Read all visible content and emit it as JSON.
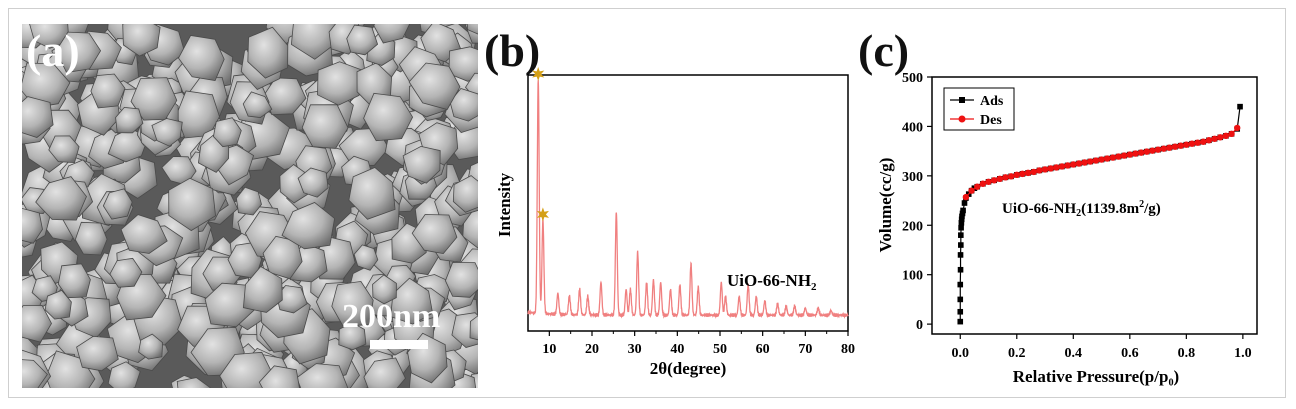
{
  "panels": {
    "a": {
      "letter": "(a)",
      "scale_bar_label": "200nm"
    },
    "b": {
      "letter": "(b)",
      "annotation": "UiO-66-NH",
      "annotation_sub": "2"
    },
    "c": {
      "letter": "(c)",
      "annotation": "UiO-66-NH",
      "annotation_sub": "2",
      "annotation_rest": "(1139.8m",
      "annotation_sup": "2",
      "annotation_end": "/g)"
    }
  },
  "colors": {
    "xrd_line": "#f08080",
    "star": "#d4a017",
    "ads": "#000000",
    "des": "#ee1111",
    "sem_bg": "#5a5a5a"
  },
  "chart_data": [
    {
      "type": "line",
      "panel": "b",
      "xlabel": "2θ(degree)",
      "ylabel": "Intensity",
      "xlim": [
        5,
        80
      ],
      "xticks": [
        10,
        20,
        30,
        40,
        50,
        60,
        70,
        80
      ],
      "yticks_shown": false,
      "peaks": [
        {
          "x": 7.4,
          "y": 100
        },
        {
          "x": 8.5,
          "y": 40
        },
        {
          "x": 12.0,
          "y": 9
        },
        {
          "x": 14.7,
          "y": 8
        },
        {
          "x": 17.1,
          "y": 11
        },
        {
          "x": 19.0,
          "y": 8
        },
        {
          "x": 22.1,
          "y": 14
        },
        {
          "x": 25.7,
          "y": 44
        },
        {
          "x": 28.0,
          "y": 11
        },
        {
          "x": 29.0,
          "y": 11
        },
        {
          "x": 30.7,
          "y": 27
        },
        {
          "x": 32.8,
          "y": 14
        },
        {
          "x": 34.4,
          "y": 15
        },
        {
          "x": 36.1,
          "y": 14
        },
        {
          "x": 38.4,
          "y": 11
        },
        {
          "x": 40.6,
          "y": 13
        },
        {
          "x": 43.2,
          "y": 22
        },
        {
          "x": 44.9,
          "y": 12
        },
        {
          "x": 50.3,
          "y": 14
        },
        {
          "x": 51.3,
          "y": 8
        },
        {
          "x": 54.5,
          "y": 8
        },
        {
          "x": 56.6,
          "y": 13
        },
        {
          "x": 58.5,
          "y": 8
        },
        {
          "x": 60.5,
          "y": 6
        },
        {
          "x": 63.5,
          "y": 5
        },
        {
          "x": 65.5,
          "y": 4
        },
        {
          "x": 67.5,
          "y": 4
        },
        {
          "x": 70.0,
          "y": 3
        },
        {
          "x": 73.0,
          "y": 3
        },
        {
          "x": 76.0,
          "y": 2
        }
      ],
      "starred_peaks_x": [
        7.4,
        8.5
      ]
    },
    {
      "type": "line",
      "panel": "c",
      "xlabel": "Relative Pressure(p/p₀)",
      "ylabel": "Volume(cc/g)",
      "xlim": [
        -0.1,
        1.05
      ],
      "ylim": [
        -20,
        500
      ],
      "xticks": [
        0.0,
        0.2,
        0.4,
        0.6,
        0.8,
        1.0
      ],
      "yticks": [
        0,
        100,
        200,
        300,
        400,
        500
      ],
      "legend": "top-left",
      "series": [
        {
          "name": "Ads",
          "marker": "square",
          "x": [
            0.0,
            0.0,
            0.0,
            0.0,
            0.001,
            0.001,
            0.002,
            0.002,
            0.003,
            0.004,
            0.005,
            0.006,
            0.008,
            0.01,
            0.015,
            0.02,
            0.03,
            0.04,
            0.05,
            0.06,
            0.08,
            0.1,
            0.12,
            0.14,
            0.16,
            0.18,
            0.2,
            0.22,
            0.24,
            0.26,
            0.28,
            0.3,
            0.32,
            0.34,
            0.36,
            0.38,
            0.4,
            0.42,
            0.44,
            0.46,
            0.48,
            0.5,
            0.52,
            0.54,
            0.56,
            0.58,
            0.6,
            0.62,
            0.64,
            0.66,
            0.68,
            0.7,
            0.72,
            0.74,
            0.76,
            0.78,
            0.8,
            0.82,
            0.84,
            0.86,
            0.88,
            0.9,
            0.92,
            0.94,
            0.96,
            0.98,
            0.99
          ],
          "y": [
            5,
            25,
            50,
            80,
            110,
            140,
            160,
            180,
            195,
            205,
            212,
            218,
            224,
            230,
            245,
            255,
            263,
            270,
            275,
            278,
            284,
            288,
            291,
            294,
            297,
            299,
            302,
            304,
            306,
            308,
            311,
            313,
            315,
            317,
            319,
            321,
            323,
            325,
            327,
            329,
            331,
            333,
            335,
            337,
            339,
            341,
            343,
            345,
            347,
            349,
            351,
            353,
            355,
            357,
            359,
            361,
            363,
            365,
            367,
            369,
            372,
            375,
            378,
            381,
            385,
            395,
            440
          ]
        },
        {
          "name": "Des",
          "marker": "circle",
          "x": [
            0.02,
            0.04,
            0.06,
            0.08,
            0.1,
            0.12,
            0.14,
            0.16,
            0.18,
            0.2,
            0.22,
            0.24,
            0.26,
            0.28,
            0.3,
            0.32,
            0.34,
            0.36,
            0.38,
            0.4,
            0.42,
            0.44,
            0.46,
            0.48,
            0.5,
            0.52,
            0.54,
            0.56,
            0.58,
            0.6,
            0.62,
            0.64,
            0.66,
            0.68,
            0.7,
            0.72,
            0.74,
            0.76,
            0.78,
            0.8,
            0.82,
            0.84,
            0.86,
            0.88,
            0.9,
            0.92,
            0.94,
            0.96,
            0.98
          ],
          "y": [
            257,
            270,
            278,
            284,
            288,
            291,
            294,
            297,
            299,
            302,
            304,
            306,
            308,
            311,
            313,
            315,
            317,
            319,
            321,
            323,
            325,
            327,
            329,
            331,
            333,
            335,
            337,
            339,
            341,
            343,
            345,
            347,
            349,
            351,
            353,
            355,
            357,
            359,
            361,
            363,
            365,
            367,
            369,
            372,
            375,
            378,
            381,
            385,
            397
          ]
        }
      ]
    }
  ]
}
